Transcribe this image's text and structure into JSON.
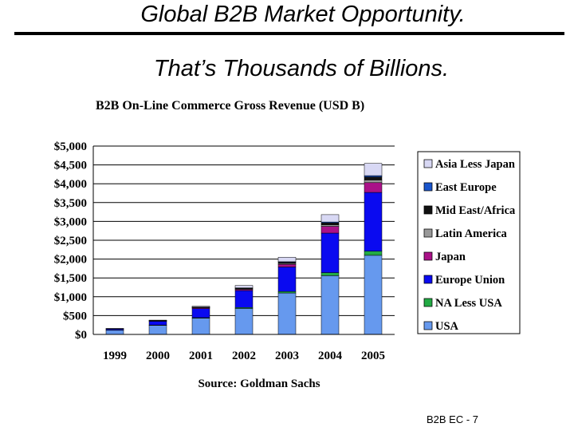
{
  "slide": {
    "title": "Global B2B Market Opportunity.",
    "subtitle": "That’s Thousands of Billions.",
    "footer": "B2B EC - 7"
  },
  "colors": {
    "USA": "#6699ee",
    "NA Less USA": "#22aa44",
    "Europe Union": "#0a0af0",
    "Japan": "#aa1188",
    "Latin America": "#999999",
    "Mid East/Africa": "#111111",
    "East Europe": "#1a55cc",
    "Asia Less Japan": "#d8d8f4"
  },
  "chart_data": {
    "type": "bar",
    "stacked": true,
    "title": "B2B On-Line Commerce Gross Revenue (USD B)",
    "source": "Source: Goldman Sachs",
    "categories": [
      "1999",
      "2000",
      "2001",
      "2002",
      "2003",
      "2004",
      "2005"
    ],
    "y_ticks": [
      "$0",
      "$500",
      "$1,000",
      "$1,500",
      "$2,000",
      "$2,500",
      "$3,000",
      "$3,500",
      "$4,000",
      "$4,500",
      "$5,000"
    ],
    "ylim": [
      0,
      5000
    ],
    "grid": true,
    "legend_position": "right",
    "series": [
      {
        "name": "USA",
        "values": [
          110,
          240,
          430,
          690,
          1100,
          1560,
          2100
        ]
      },
      {
        "name": "NA Less USA",
        "values": [
          5,
          10,
          15,
          25,
          40,
          80,
          110
        ]
      },
      {
        "name": "Europe Union",
        "values": [
          30,
          100,
          240,
          450,
          650,
          1050,
          1560
        ]
      },
      {
        "name": "Japan",
        "values": [
          3,
          8,
          20,
          30,
          70,
          180,
          260
        ]
      },
      {
        "name": "Latin America",
        "values": [
          2,
          4,
          8,
          15,
          25,
          40,
          70
        ]
      },
      {
        "name": "Mid East/Africa",
        "values": [
          2,
          4,
          8,
          15,
          30,
          50,
          80
        ]
      },
      {
        "name": "East Europe",
        "values": [
          1,
          3,
          6,
          10,
          15,
          25,
          35
        ]
      },
      {
        "name": "Asia Less Japan",
        "values": [
          7,
          11,
          23,
          65,
          120,
          195,
          325
        ]
      }
    ]
  }
}
